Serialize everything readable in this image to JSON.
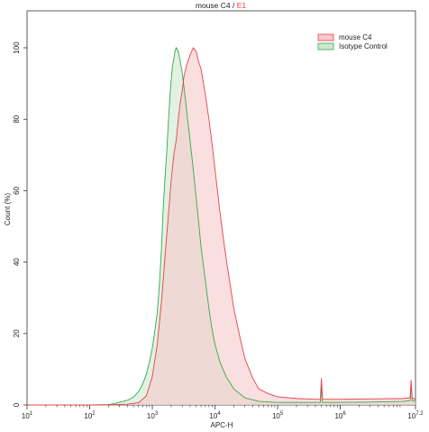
{
  "chart_data": {
    "type": "area",
    "title": "mouse C4 / E1",
    "title_parts": [
      "mouse C4",
      " / ",
      "E1"
    ],
    "xlabel": "APC-H",
    "ylabel": "Count (%)",
    "x_scale": "log10",
    "xlim": [
      10,
      15848932
    ],
    "ylim": [
      0,
      100
    ],
    "grid": false,
    "legend_position": "top-right",
    "x_tick_labels": [
      {
        "value": 10,
        "base": "10",
        "exp": "1"
      },
      {
        "value": 100,
        "base": "10",
        "exp": "2"
      },
      {
        "value": 1000,
        "base": "10",
        "exp": "3"
      },
      {
        "value": 10000,
        "base": "10",
        "exp": "4"
      },
      {
        "value": 100000,
        "base": "10",
        "exp": "5"
      },
      {
        "value": 1000000,
        "base": "10",
        "exp": "6"
      },
      {
        "value": 15848932,
        "base": "10",
        "exp": "7.2"
      }
    ],
    "y_ticks": [
      0,
      20,
      40,
      60,
      80,
      100
    ],
    "series": [
      {
        "name": "mouse C4",
        "stroke": "#e8414a",
        "fill": "#f6c9cc",
        "points": [
          [
            10,
            0
          ],
          [
            100,
            0
          ],
          [
            200,
            0
          ],
          [
            400,
            0.2
          ],
          [
            600,
            0.6
          ],
          [
            800,
            2.5
          ],
          [
            1000,
            8
          ],
          [
            1200,
            17
          ],
          [
            1400,
            29
          ],
          [
            1600,
            42
          ],
          [
            1800,
            53
          ],
          [
            2000,
            63
          ],
          [
            2200,
            70
          ],
          [
            2400,
            74
          ],
          [
            2600,
            80
          ],
          [
            2800,
            85
          ],
          [
            3000,
            88
          ],
          [
            3200,
            92
          ],
          [
            3500,
            95
          ],
          [
            4000,
            98
          ],
          [
            4500,
            100
          ],
          [
            5000,
            99
          ],
          [
            5500,
            96
          ],
          [
            6000,
            94
          ],
          [
            7000,
            87
          ],
          [
            8000,
            80
          ],
          [
            9000,
            73
          ],
          [
            10000,
            66
          ],
          [
            12000,
            54
          ],
          [
            14000,
            45
          ],
          [
            16000,
            38
          ],
          [
            20000,
            27
          ],
          [
            25000,
            19
          ],
          [
            30000,
            13
          ],
          [
            40000,
            7.5
          ],
          [
            50000,
            4.5
          ],
          [
            70000,
            3.2
          ],
          [
            100000,
            2.3
          ],
          [
            200000,
            1.8
          ],
          [
            400000,
            1.6
          ],
          [
            480000,
            1.6
          ],
          [
            500000,
            7.5
          ],
          [
            520000,
            1.6
          ],
          [
            1000000,
            1.6
          ],
          [
            3000000,
            1.7
          ],
          [
            10000000,
            1.8
          ],
          [
            13000000,
            2
          ],
          [
            13500000,
            7
          ],
          [
            14000000,
            2
          ],
          [
            15848932,
            1.5
          ]
        ]
      },
      {
        "name": "Isotype Control",
        "stroke": "#3aa84a",
        "fill": "#cde8cf",
        "points": [
          [
            10,
            0
          ],
          [
            100,
            0
          ],
          [
            200,
            0.1
          ],
          [
            250,
            0.4
          ],
          [
            300,
            0.8
          ],
          [
            400,
            1.3
          ],
          [
            500,
            2.2
          ],
          [
            600,
            3.7
          ],
          [
            700,
            5.8
          ],
          [
            800,
            8.6
          ],
          [
            900,
            12
          ],
          [
            1000,
            16
          ],
          [
            1100,
            21
          ],
          [
            1200,
            26
          ],
          [
            1300,
            34
          ],
          [
            1400,
            44
          ],
          [
            1500,
            56
          ],
          [
            1600,
            64
          ],
          [
            1700,
            71
          ],
          [
            1800,
            79
          ],
          [
            1900,
            86
          ],
          [
            2000,
            91
          ],
          [
            2100,
            95
          ],
          [
            2200,
            97
          ],
          [
            2300,
            99
          ],
          [
            2400,
            100
          ],
          [
            2600,
            99
          ],
          [
            2800,
            96
          ],
          [
            3000,
            93
          ],
          [
            3300,
            87
          ],
          [
            3600,
            81
          ],
          [
            4000,
            74
          ],
          [
            4500,
            66
          ],
          [
            5000,
            58
          ],
          [
            5500,
            51
          ],
          [
            6000,
            44
          ],
          [
            7000,
            35
          ],
          [
            8000,
            27
          ],
          [
            9000,
            21
          ],
          [
            10000,
            17
          ],
          [
            12000,
            12
          ],
          [
            15000,
            8
          ],
          [
            20000,
            4.5
          ],
          [
            30000,
            2
          ],
          [
            50000,
            1
          ],
          [
            100000,
            0.7
          ],
          [
            480000,
            0.7
          ],
          [
            500000,
            5.2
          ],
          [
            520000,
            0.7
          ],
          [
            3000000,
            0.8
          ],
          [
            10000000,
            1
          ],
          [
            13000000,
            1.2
          ],
          [
            13500000,
            6
          ],
          [
            14000000,
            1.2
          ],
          [
            15848932,
            1
          ]
        ]
      }
    ]
  }
}
